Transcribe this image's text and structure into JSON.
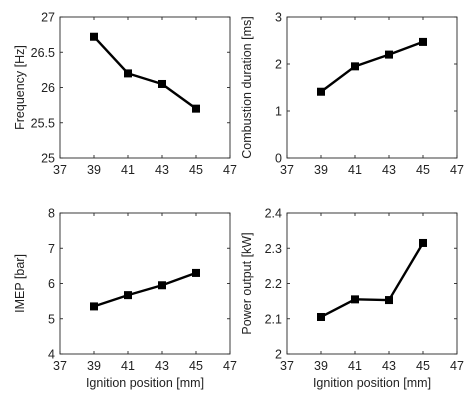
{
  "chart_data": [
    {
      "type": "line",
      "xlabel": "",
      "ylabel": "Frequency [Hz]",
      "xlim": [
        37,
        47
      ],
      "ylim": [
        25,
        27
      ],
      "xticks": [
        "37",
        "39",
        "41",
        "43",
        "45",
        "47"
      ],
      "yticks": [
        "25",
        "25.5",
        "26",
        "26.5",
        "27"
      ],
      "grid": false,
      "series": [
        {
          "x": [
            39,
            41,
            43,
            45
          ],
          "y": [
            26.72,
            26.2,
            26.05,
            25.7
          ]
        }
      ]
    },
    {
      "type": "line",
      "xlabel": "",
      "ylabel": "Combustion duration [ms]",
      "xlim": [
        37,
        47
      ],
      "ylim": [
        0,
        3
      ],
      "xticks": [
        "37",
        "39",
        "41",
        "43",
        "45",
        "47"
      ],
      "yticks": [
        "0",
        "1",
        "2",
        "3"
      ],
      "grid": false,
      "series": [
        {
          "x": [
            39,
            41,
            43,
            45
          ],
          "y": [
            1.41,
            1.95,
            2.2,
            2.47
          ]
        }
      ]
    },
    {
      "type": "line",
      "xlabel": "Ignition position [mm]",
      "ylabel": "IMEP [bar]",
      "xlim": [
        37,
        47
      ],
      "ylim": [
        4,
        8
      ],
      "xticks": [
        "37",
        "39",
        "41",
        "43",
        "45",
        "47"
      ],
      "yticks": [
        "4",
        "5",
        "6",
        "7",
        "8"
      ],
      "grid": false,
      "series": [
        {
          "x": [
            39,
            41,
            43,
            45
          ],
          "y": [
            5.35,
            5.67,
            5.95,
            6.3
          ]
        }
      ]
    },
    {
      "type": "line",
      "xlabel": "Ignition position [mm]",
      "ylabel": "Power output [kW]",
      "xlim": [
        37,
        47
      ],
      "ylim": [
        2,
        2.4
      ],
      "xticks": [
        "37",
        "39",
        "41",
        "43",
        "45",
        "47"
      ],
      "yticks": [
        "2",
        "2.1",
        "2.2",
        "2.3",
        "2.4"
      ],
      "grid": false,
      "series": [
        {
          "x": [
            39,
            41,
            43,
            45
          ],
          "y": [
            2.105,
            2.155,
            2.153,
            2.315
          ]
        }
      ]
    }
  ]
}
